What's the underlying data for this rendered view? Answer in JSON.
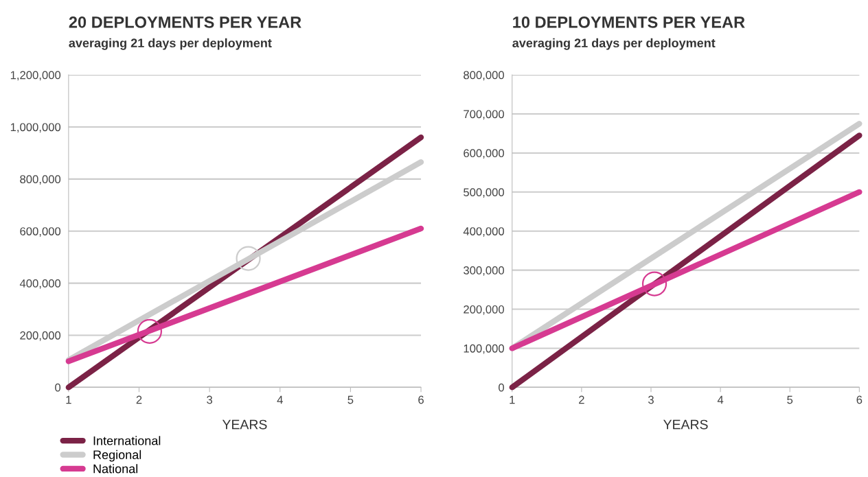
{
  "chart_data": [
    {
      "type": "line",
      "title": "20 DEPLOYMENTS PER YEAR",
      "subtitle": "averaging 21 days per deployment",
      "xlabel": "YEARS",
      "xlim": [
        1,
        6
      ],
      "xticks": [
        1,
        2,
        3,
        4,
        5,
        6
      ],
      "ylim": [
        0,
        1200000
      ],
      "yticks": [
        {
          "value": 0,
          "label": "0"
        },
        {
          "value": 200000,
          "label": "200,000"
        },
        {
          "value": 400000,
          "label": "400,000"
        },
        {
          "value": 600000,
          "label": "600,000"
        },
        {
          "value": 800000,
          "label": "800,000"
        },
        {
          "value": 1000000,
          "label": "1,000,000"
        },
        {
          "value": 1200000,
          "label": "1,200,000"
        }
      ],
      "grid": "y",
      "legend": "bottom left",
      "series": [
        {
          "name": "International",
          "color": "#7b2246",
          "x": [
            1,
            6
          ],
          "values": [
            0,
            960000
          ]
        },
        {
          "name": "Regional",
          "color": "#cccccc",
          "x": [
            1,
            6
          ],
          "values": [
            105000,
            865000
          ]
        },
        {
          "name": "National",
          "color": "#d63a91",
          "x": [
            1,
            6
          ],
          "values": [
            100000,
            610000
          ]
        },
        {
          "type": "scatter",
          "marker": "circle",
          "color": "#cccccc",
          "x": [
            3.55
          ],
          "values": [
            495000
          ]
        },
        {
          "type": "scatter",
          "marker": "circle",
          "color": "#d63a91",
          "x": [
            2.15
          ],
          "values": [
            215000
          ]
        }
      ]
    },
    {
      "type": "line",
      "title": "10 DEPLOYMENTS PER YEAR",
      "subtitle": "averaging 21 days per deployment",
      "xlabel": "YEARS",
      "xlim": [
        1,
        6
      ],
      "xticks": [
        1,
        2,
        3,
        4,
        5,
        6
      ],
      "ylim": [
        0,
        800000
      ],
      "yticks": [
        {
          "value": 0,
          "label": "0"
        },
        {
          "value": 100000,
          "label": "100,000"
        },
        {
          "value": 200000,
          "label": "200,000"
        },
        {
          "value": 300000,
          "label": "300,000"
        },
        {
          "value": 400000,
          "label": "400,000"
        },
        {
          "value": 500000,
          "label": "500,000"
        },
        {
          "value": 600000,
          "label": "600,000"
        },
        {
          "value": 700000,
          "label": "700,000"
        },
        {
          "value": 800000,
          "label": "800,000"
        }
      ],
      "grid": "y",
      "series": [
        {
          "color": "#7b2246",
          "x": [
            1,
            6
          ],
          "values": [
            0,
            645000
          ]
        },
        {
          "color": "#cccccc",
          "x": [
            1,
            6
          ],
          "values": [
            100000,
            675000
          ]
        },
        {
          "color": "#d63a91",
          "x": [
            1,
            6
          ],
          "values": [
            100000,
            500000
          ]
        },
        {
          "type": "scatter",
          "marker": "circle",
          "color": "#d63a91",
          "x": [
            3.05
          ],
          "values": [
            265000
          ]
        }
      ]
    }
  ]
}
